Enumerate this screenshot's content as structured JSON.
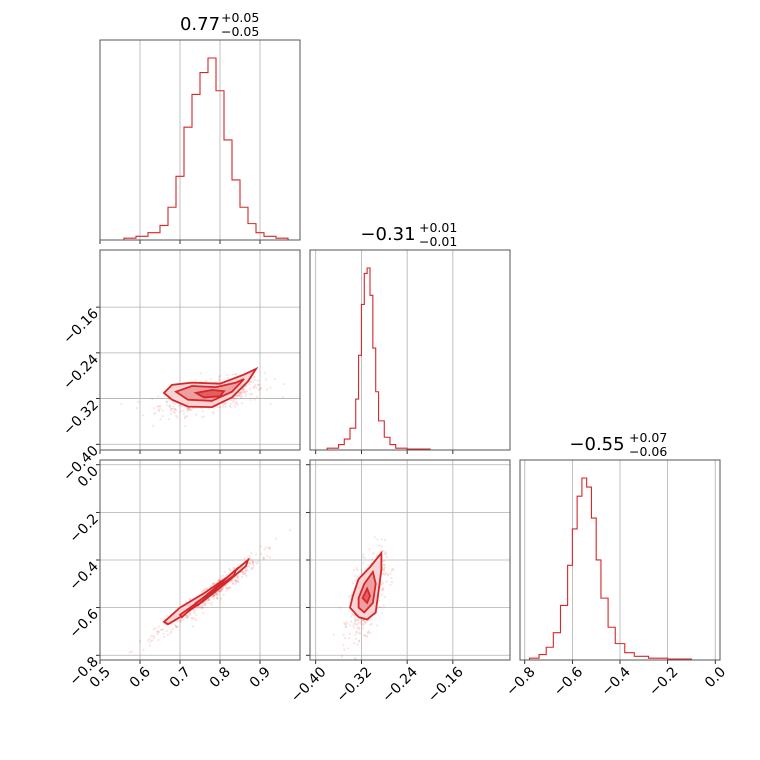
{
  "chart_data": {
    "type": "corner",
    "color": "#d62728",
    "grid": true,
    "parameters": [
      {
        "range": [
          0.5,
          1.0
        ],
        "ticks": [
          0.5,
          0.6,
          0.7,
          0.8,
          0.9
        ],
        "tick_labels": [
          "0.5",
          "0.6",
          "0.7",
          "0.8",
          "0.9"
        ]
      },
      {
        "range": [
          -0.41,
          -0.06
        ],
        "ticks": [
          -0.4,
          -0.32,
          -0.24,
          -0.16
        ],
        "tick_labels": [
          "−0.40",
          "−0.32",
          "−0.24",
          "−0.16"
        ]
      },
      {
        "range": [
          -0.82,
          0.02
        ],
        "ticks": [
          -0.8,
          -0.6,
          -0.4,
          -0.2,
          0.0
        ],
        "tick_labels": [
          "−0.8",
          "−0.6",
          "−0.4",
          "−0.2",
          "0.0"
        ]
      }
    ],
    "titles": [
      {
        "value": "0.77",
        "plus": "+0.05",
        "minus": "−0.05"
      },
      {
        "value": "−0.31",
        "plus": "+0.01",
        "minus": "−0.01"
      },
      {
        "value": "−0.55",
        "plus": "+0.07",
        "minus": "−0.06"
      }
    ],
    "marginals": [
      {
        "x": [
          0.5,
          0.53,
          0.56,
          0.59,
          0.62,
          0.65,
          0.67,
          0.69,
          0.71,
          0.73,
          0.75,
          0.77,
          0.79,
          0.81,
          0.83,
          0.85,
          0.87,
          0.89,
          0.91,
          0.94,
          0.97,
          1.0
        ],
        "y": [
          0.0,
          0.0,
          0.01,
          0.02,
          0.04,
          0.08,
          0.18,
          0.35,
          0.62,
          0.8,
          0.92,
          1.0,
          0.82,
          0.55,
          0.33,
          0.18,
          0.09,
          0.04,
          0.02,
          0.01,
          0.0,
          0.0
        ]
      },
      {
        "x": [
          -0.41,
          -0.38,
          -0.36,
          -0.35,
          -0.34,
          -0.33,
          -0.325,
          -0.32,
          -0.315,
          -0.31,
          -0.305,
          -0.3,
          -0.295,
          -0.29,
          -0.28,
          -0.27,
          -0.26,
          -0.24,
          -0.2,
          -0.15,
          -0.1,
          -0.06
        ],
        "y": [
          0.0,
          0.01,
          0.03,
          0.06,
          0.12,
          0.28,
          0.52,
          0.8,
          0.97,
          1.0,
          0.85,
          0.56,
          0.32,
          0.16,
          0.07,
          0.03,
          0.01,
          0.005,
          0.0,
          0.0,
          0.0,
          0.0
        ]
      },
      {
        "x": [
          -0.82,
          -0.78,
          -0.74,
          -0.71,
          -0.68,
          -0.65,
          -0.62,
          -0.6,
          -0.58,
          -0.56,
          -0.54,
          -0.52,
          -0.5,
          -0.48,
          -0.45,
          -0.42,
          -0.38,
          -0.34,
          -0.28,
          -0.2,
          -0.1,
          0.02
        ],
        "y": [
          0.0,
          0.01,
          0.03,
          0.07,
          0.15,
          0.3,
          0.52,
          0.72,
          0.9,
          1.0,
          0.95,
          0.78,
          0.55,
          0.34,
          0.18,
          0.09,
          0.04,
          0.02,
          0.01,
          0.005,
          0.0,
          0.0
        ]
      }
    ],
    "pairs": [
      {
        "xi": 0,
        "yi": 1,
        "center": [
          0.78,
          -0.315
        ],
        "spread": [
          0.05,
          0.012
        ],
        "corr": 0.55,
        "contours": [
          [
            [
              0.66,
              -0.31
            ],
            [
              0.68,
              -0.296
            ],
            [
              0.73,
              -0.292
            ],
            [
              0.8,
              -0.294
            ],
            [
              0.86,
              -0.278
            ],
            [
              0.89,
              -0.268
            ],
            [
              0.87,
              -0.29
            ],
            [
              0.83,
              -0.318
            ],
            [
              0.78,
              -0.335
            ],
            [
              0.72,
              -0.334
            ],
            [
              0.68,
              -0.322
            ]
          ],
          [
            [
              0.69,
              -0.308
            ],
            [
              0.73,
              -0.298
            ],
            [
              0.79,
              -0.3
            ],
            [
              0.84,
              -0.292
            ],
            [
              0.86,
              -0.286
            ],
            [
              0.83,
              -0.308
            ],
            [
              0.78,
              -0.324
            ],
            [
              0.72,
              -0.322
            ]
          ],
          [
            [
              0.74,
              -0.31
            ],
            [
              0.78,
              -0.305
            ],
            [
              0.81,
              -0.307
            ],
            [
              0.8,
              -0.316
            ],
            [
              0.76,
              -0.318
            ]
          ]
        ]
      },
      {
        "xi": 0,
        "yi": 2,
        "center": [
          0.77,
          -0.55
        ],
        "spread": [
          0.05,
          0.065
        ],
        "corr": 0.97,
        "contours": [
          [
            [
              0.66,
              -0.66
            ],
            [
              0.7,
              -0.6
            ],
            [
              0.76,
              -0.54
            ],
            [
              0.82,
              -0.47
            ],
            [
              0.87,
              -0.4
            ],
            [
              0.865,
              -0.425
            ],
            [
              0.82,
              -0.49
            ],
            [
              0.76,
              -0.57
            ],
            [
              0.7,
              -0.64
            ],
            [
              0.67,
              -0.67
            ]
          ],
          [
            [
              0.7,
              -0.63
            ],
            [
              0.75,
              -0.57
            ],
            [
              0.8,
              -0.5
            ],
            [
              0.84,
              -0.44
            ],
            [
              0.835,
              -0.465
            ],
            [
              0.79,
              -0.52
            ],
            [
              0.74,
              -0.585
            ],
            [
              0.705,
              -0.64
            ]
          ],
          [
            [
              0.74,
              -0.58
            ],
            [
              0.77,
              -0.545
            ],
            [
              0.79,
              -0.52
            ],
            [
              0.785,
              -0.535
            ],
            [
              0.765,
              -0.56
            ],
            [
              0.745,
              -0.59
            ]
          ]
        ]
      },
      {
        "xi": 1,
        "yi": 2,
        "center": [
          -0.31,
          -0.55
        ],
        "spread": [
          0.012,
          0.065
        ],
        "corr": 0.55,
        "contours": [
          [
            [
              -0.335,
              -0.55
            ],
            [
              -0.325,
              -0.48
            ],
            [
              -0.305,
              -0.43
            ],
            [
              -0.285,
              -0.37
            ],
            [
              -0.285,
              -0.44
            ],
            [
              -0.29,
              -0.53
            ],
            [
              -0.295,
              -0.62
            ],
            [
              -0.31,
              -0.65
            ],
            [
              -0.325,
              -0.64
            ],
            [
              -0.34,
              -0.6
            ]
          ],
          [
            [
              -0.325,
              -0.56
            ],
            [
              -0.315,
              -0.5
            ],
            [
              -0.3,
              -0.45
            ],
            [
              -0.295,
              -0.5
            ],
            [
              -0.3,
              -0.58
            ],
            [
              -0.315,
              -0.62
            ],
            [
              -0.325,
              -0.6
            ]
          ],
          [
            [
              -0.318,
              -0.56
            ],
            [
              -0.31,
              -0.52
            ],
            [
              -0.305,
              -0.55
            ],
            [
              -0.31,
              -0.58
            ]
          ]
        ]
      }
    ]
  }
}
